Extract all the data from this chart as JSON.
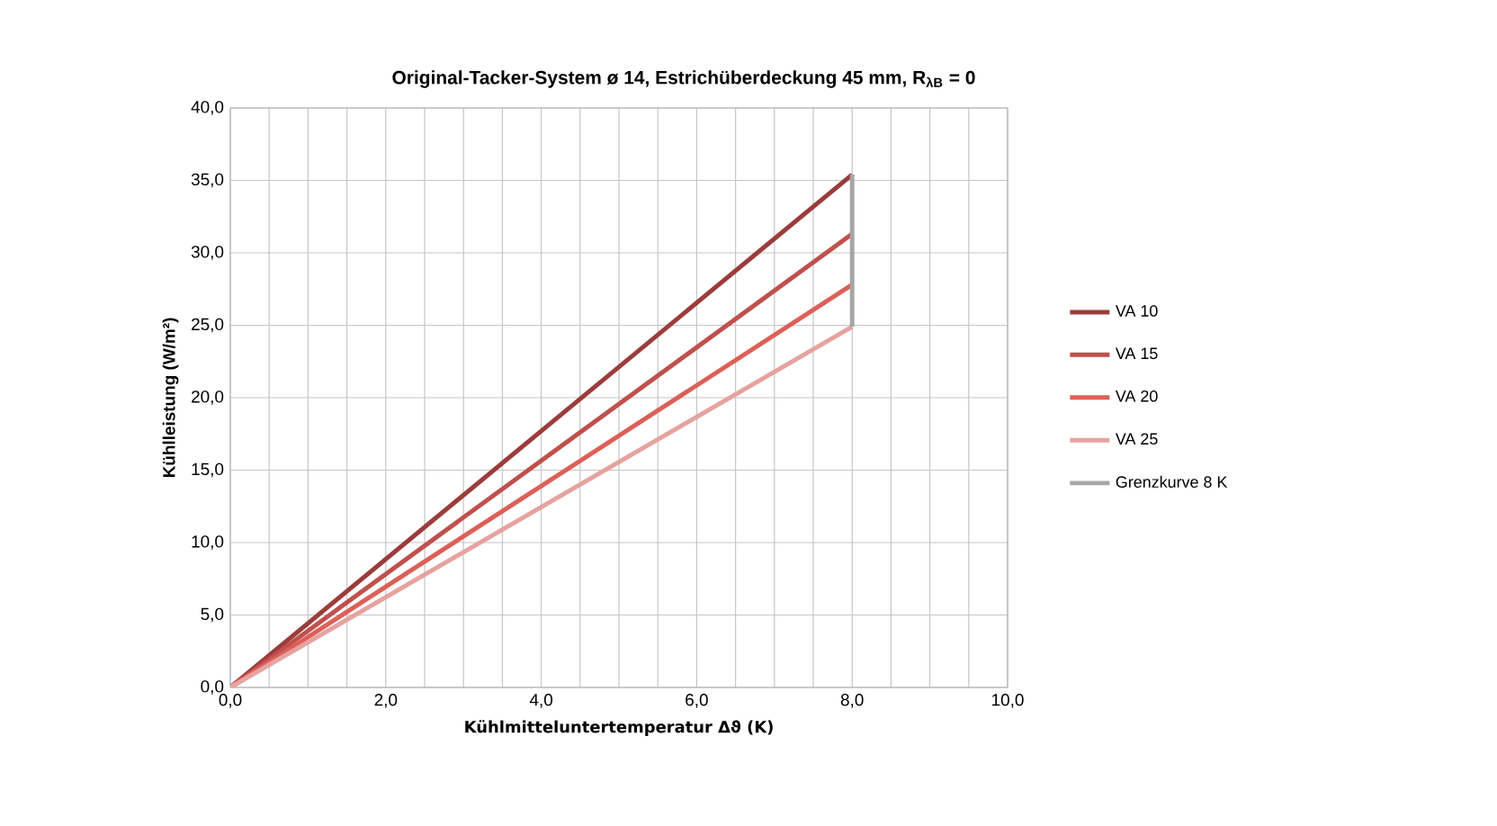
{
  "chart_data": {
    "type": "line",
    "title": "Original-Tacker-System ø 14, Estrichüberdeckung 45 mm, R$_{λB}$ = 0",
    "xlabel": "Kühlmitteluntertemperatur Δϑ (K)",
    "ylabel": "Kühlleistung (W/m²)",
    "x": [
      0,
      8
    ],
    "series": [
      {
        "name": "VA 10",
        "color": "#9b3c3c",
        "values": [
          0,
          35.4
        ]
      },
      {
        "name": "VA 15",
        "color": "#c0504d",
        "values": [
          0,
          31.3
        ]
      },
      {
        "name": "VA 20",
        "color": "#dc6058",
        "values": [
          0,
          27.8
        ]
      },
      {
        "name": "VA 25",
        "color": "#e6a3a0",
        "values": [
          0,
          24.9
        ]
      },
      {
        "name": "Grenzkurve 8 K",
        "color": "#a6a6a6",
        "x": [
          8,
          8
        ],
        "values": [
          24.9,
          35.4
        ]
      }
    ],
    "xlim": [
      0,
      10
    ],
    "ylim": [
      0,
      40
    ],
    "xticks": [
      {
        "value": 0,
        "label": "0,0"
      },
      {
        "value": 0.5,
        "label": null
      },
      {
        "value": 1,
        "label": null
      },
      {
        "value": 1.5,
        "label": null
      },
      {
        "value": 2,
        "label": "2,0"
      },
      {
        "value": 2.5,
        "label": null
      },
      {
        "value": 3,
        "label": null
      },
      {
        "value": 3.5,
        "label": null
      },
      {
        "value": 4,
        "label": "4,0"
      },
      {
        "value": 4.5,
        "label": null
      },
      {
        "value": 5,
        "label": null
      },
      {
        "value": 5.5,
        "label": null
      },
      {
        "value": 6,
        "label": "6,0"
      },
      {
        "value": 6.5,
        "label": null
      },
      {
        "value": 7,
        "label": null
      },
      {
        "value": 7.5,
        "label": null
      },
      {
        "value": 8,
        "label": "8,0"
      },
      {
        "value": 8.5,
        "label": null
      },
      {
        "value": 9,
        "label": null
      },
      {
        "value": 9.5,
        "label": null
      },
      {
        "value": 10,
        "label": "10,0"
      }
    ],
    "yticks": [
      {
        "value": 0,
        "label": "0,0"
      },
      {
        "value": 5,
        "label": "5,0"
      },
      {
        "value": 10,
        "label": "10,0"
      },
      {
        "value": 15,
        "label": "15,0"
      },
      {
        "value": 20,
        "label": "20,0"
      },
      {
        "value": 25,
        "label": "25,0"
      },
      {
        "value": 30,
        "label": "30,0"
      },
      {
        "value": 35,
        "label": "35,0"
      },
      {
        "value": 40,
        "label": "40,0"
      }
    ],
    "grid": true,
    "legend": "right",
    "marker": "none",
    "line_style": "solid"
  }
}
